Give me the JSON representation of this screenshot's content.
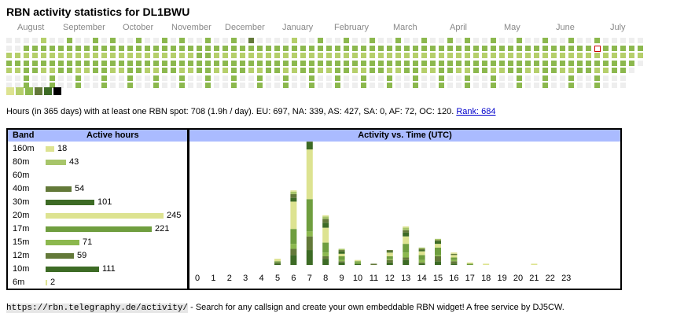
{
  "title": "RBN activity statistics for DL1BWU",
  "months": [
    "August",
    "September",
    "October",
    "November",
    "December",
    "January",
    "February",
    "March",
    "April",
    "May",
    "June",
    "July"
  ],
  "colors": {
    "empty": "#eeeeee",
    "levels": [
      "#dde391",
      "#b5cf6b",
      "#8cb84e",
      "#637939",
      "#3d6b25",
      "#000000"
    ],
    "today_border": "#cc0000",
    "header_bg": "#aabbff",
    "link": "#0000cc"
  },
  "heatmap_grid": [
    "....2..3..3.3..3..3.3..3..3.4....2..3..3..3..3..3..3.3..3..3..3..3..3......",
    "..33333333333333333333333333333333333333333333333333333333333333333333333333",
    "22222222222222222222223322222222222222222222222222222222222222222222222222.",
    "3333333333333333333333333333333333333333333333333333333333333333333333333.",
    "223322332233223322332233223322332233223322332233223322332233223322332233.",
    "..3..3..3..3..3..3..3..3..3..3..3..3..3..3..3..3..3..3..3..3..3..3..3...",
    "..3..3..3..3..3..3..3..3..3..3..3..3..3..3..3..3..3..3..3..3..3..3..3..."
  ],
  "legend_levels": [
    0,
    1,
    2,
    3,
    4,
    5
  ],
  "summary": {
    "text": "Hours (in 365 days) with at least one RBN spot: 708 (1.9h / day). EU: 697, NA: 339, AS: 427, SA: 0, AF: 72, OC: 120.",
    "rank_link": "Rank: 684"
  },
  "band_table": {
    "header_band": "Band",
    "header_hours": "Active hours",
    "rows": [
      {
        "band": "160m",
        "hours": 18,
        "color": "#dde391"
      },
      {
        "band": "80m",
        "hours": 43,
        "color": "#a7c56a"
      },
      {
        "band": "60m",
        "hours": 0,
        "color": "#a7c56a"
      },
      {
        "band": "40m",
        "hours": 54,
        "color": "#637939"
      },
      {
        "band": "30m",
        "hours": 101,
        "color": "#3d6b25"
      },
      {
        "band": "20m",
        "hours": 245,
        "color": "#dde391"
      },
      {
        "band": "17m",
        "hours": 221,
        "color": "#6f9e3f"
      },
      {
        "band": "15m",
        "hours": 71,
        "color": "#8cb84e"
      },
      {
        "band": "12m",
        "hours": 59,
        "color": "#637939"
      },
      {
        "band": "10m",
        "hours": 111,
        "color": "#3d6b25"
      },
      {
        "band": "6m",
        "hours": 2,
        "color": "#dde391"
      }
    ]
  },
  "chart_data": {
    "type": "bar",
    "title": "Activity vs. Time (UTC)",
    "xlabel": "",
    "ylabel": "",
    "categories": [
      "0",
      "1",
      "2",
      "3",
      "4",
      "5",
      "6",
      "7",
      "8",
      "9",
      "10",
      "11",
      "12",
      "13",
      "14",
      "15",
      "16",
      "17",
      "18",
      "19",
      "20",
      "21",
      "22",
      "23"
    ],
    "series": [
      {
        "name": "10m",
        "color": "#3d6b25",
        "values": [
          0,
          0,
          0,
          0,
          0,
          1,
          8,
          12,
          5,
          2,
          1,
          0,
          2,
          4,
          1,
          3,
          1,
          0,
          0,
          0,
          0,
          0,
          0,
          0
        ]
      },
      {
        "name": "12m",
        "color": "#637939",
        "values": [
          0,
          0,
          0,
          0,
          0,
          1,
          5,
          11,
          2,
          1,
          0,
          1,
          2,
          2,
          1,
          4,
          2,
          0,
          0,
          0,
          0,
          0,
          0,
          0
        ]
      },
      {
        "name": "15m",
        "color": "#8cb84e",
        "values": [
          0,
          0,
          0,
          0,
          0,
          0,
          4,
          4,
          3,
          1,
          1,
          0,
          1,
          4,
          2,
          1,
          1,
          0,
          0,
          0,
          0,
          0,
          0,
          0
        ]
      },
      {
        "name": "17m",
        "color": "#6f9e3f",
        "values": [
          0,
          0,
          0,
          0,
          0,
          1,
          12,
          26,
          8,
          3,
          1,
          0,
          2,
          7,
          4,
          6,
          2,
          1,
          0,
          0,
          0,
          0,
          0,
          0
        ]
      },
      {
        "name": "20m",
        "color": "#dde391",
        "values": [
          0,
          0,
          0,
          0,
          0,
          2,
          22,
          40,
          12,
          2,
          1,
          0,
          3,
          6,
          3,
          3,
          2,
          1,
          1,
          0,
          0,
          1,
          0,
          0
        ]
      },
      {
        "name": "30m",
        "color": "#3d6b25",
        "values": [
          0,
          0,
          0,
          0,
          0,
          0,
          3,
          6,
          4,
          2,
          0,
          0,
          1,
          3,
          1,
          2,
          0,
          0,
          0,
          0,
          0,
          0,
          0,
          0
        ]
      },
      {
        "name": "40m",
        "color": "#637939",
        "values": [
          0,
          0,
          0,
          0,
          0,
          0,
          3,
          5,
          3,
          1,
          0,
          0,
          1,
          2,
          1,
          1,
          1,
          0,
          0,
          0,
          0,
          0,
          0,
          0
        ]
      },
      {
        "name": "80m",
        "color": "#a7c56a",
        "values": [
          0,
          0,
          0,
          0,
          0,
          0,
          2,
          3,
          2,
          1,
          0,
          0,
          0,
          2,
          1,
          1,
          0,
          0,
          0,
          0,
          0,
          0,
          0,
          0
        ]
      },
      {
        "name": "160m",
        "color": "#dde391",
        "values": [
          0,
          0,
          0,
          0,
          0,
          0,
          1,
          1,
          1,
          0,
          0,
          0,
          0,
          1,
          0,
          0,
          1,
          0,
          0,
          0,
          0,
          0,
          0,
          0
        ]
      }
    ],
    "ylim": [
      0,
      100
    ]
  },
  "footer": {
    "url": "https://rbn.telegraphy.de/activity/",
    "text": " - Search for any callsign and create your own embeddable RBN widget! A free service by DJ5CW."
  }
}
